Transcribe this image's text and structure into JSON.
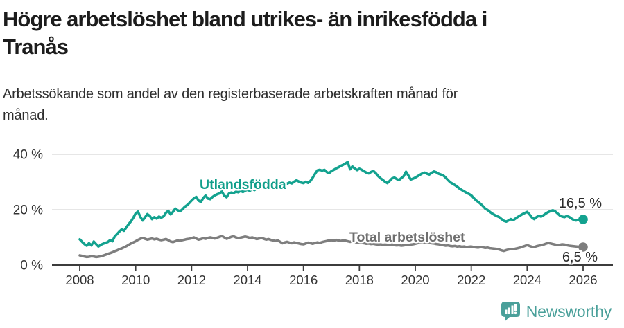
{
  "header": {
    "title_line1": "Högre arbetslöshet bland utrikes- än inrikesfödda i",
    "title_line2": "Tranås",
    "subtitle_line1": "Arbetssökande som andel av den registerbaserade arbetskraften månad för",
    "subtitle_line2": "månad."
  },
  "footer": {
    "brand": "Newsworthy",
    "brand_color": "#4aa09a"
  },
  "chart_data": {
    "type": "line",
    "title": "Högre arbetslöshet bland utrikes- än inrikesfödda i Tranås",
    "subtitle": "Arbetssökande som andel av den registerbaserade arbetskraften månad för månad.",
    "x_start_year": 2008,
    "x_step_months": 1,
    "x_ticks": [
      "2008",
      "2010",
      "2012",
      "2014",
      "2016",
      "2018",
      "2020",
      "2022",
      "2024",
      "2026"
    ],
    "y_ticks": [
      {
        "value": 0,
        "label": "0 %"
      },
      {
        "value": 20,
        "label": "20 %"
      },
      {
        "value": 40,
        "label": "40 %"
      }
    ],
    "ylim": [
      0,
      44
    ],
    "grid": "horizontal",
    "legend_position": "inline-labels",
    "series": [
      {
        "name": "Utlandsfödda",
        "color": "#13a28f",
        "label_color": "#0f9e8a",
        "end_label": "16,5 %",
        "values": [
          9.3,
          8.4,
          7.6,
          7.0,
          7.9,
          7.1,
          8.5,
          7.6,
          6.7,
          7.3,
          7.7,
          8.0,
          8.3,
          9.0,
          8.6,
          10.3,
          11.2,
          12.1,
          12.9,
          12.4,
          13.6,
          14.8,
          15.8,
          17.1,
          18.7,
          19.3,
          17.4,
          16.1,
          17.2,
          18.4,
          17.8,
          16.6,
          17.3,
          16.8,
          17.5,
          17.1,
          17.6,
          18.9,
          19.6,
          18.3,
          19.2,
          20.4,
          19.8,
          19.4,
          20.1,
          21.0,
          21.6,
          22.4,
          23.3,
          24.1,
          24.6,
          23.3,
          22.8,
          24.2,
          25.1,
          24.0,
          23.8,
          24.6,
          25.2,
          25.6,
          25.9,
          26.6,
          25.1,
          24.5,
          25.8,
          26.2,
          26.0,
          26.5,
          26.3,
          26.8,
          26.4,
          26.9,
          27.2,
          26.8,
          27.5,
          27.1,
          27.8,
          27.4,
          28.0,
          27.6,
          28.2,
          27.9,
          28.4,
          28.1,
          28.6,
          28.9,
          28.5,
          29.1,
          28.8,
          29.4,
          29.8,
          29.5,
          30.1,
          30.6,
          30.2,
          29.8,
          29.6,
          30.1,
          29.7,
          30.4,
          31.6,
          33.0,
          34.2,
          34.4,
          34.1,
          34.4,
          33.6,
          33.2,
          33.9,
          34.4,
          34.9,
          35.3,
          35.8,
          36.2,
          36.7,
          37.2,
          34.6,
          35.6,
          34.9,
          34.3,
          34.8,
          34.4,
          33.9,
          33.4,
          33.1,
          33.6,
          34.0,
          33.2,
          32.2,
          31.4,
          30.8,
          30.1,
          29.6,
          30.4,
          31.3,
          31.6,
          31.1,
          30.7,
          31.4,
          32.1,
          33.7,
          32.4,
          30.9,
          31.2,
          31.6,
          32.1,
          32.6,
          33.1,
          33.4,
          33.0,
          32.7,
          33.3,
          33.8,
          33.5,
          33.0,
          32.7,
          32.4,
          31.6,
          30.7,
          29.9,
          29.4,
          28.9,
          28.3,
          27.6,
          27.1,
          26.6,
          26.1,
          25.7,
          25.2,
          24.3,
          23.4,
          22.8,
          22.1,
          21.3,
          20.4,
          19.9,
          19.2,
          18.6,
          18.1,
          17.7,
          17.3,
          16.6,
          16.0,
          15.7,
          16.1,
          16.6,
          16.2,
          16.8,
          17.4,
          17.9,
          18.4,
          18.8,
          19.2,
          18.3,
          17.2,
          16.6,
          17.3,
          17.8,
          17.5,
          18.0,
          18.6,
          19.1,
          19.5,
          19.8,
          19.4,
          18.7,
          17.9,
          17.5,
          17.3,
          17.7,
          17.4,
          16.8,
          16.3,
          16.1,
          16.4,
          16.2,
          16.5
        ]
      },
      {
        "name": "Total arbetslöshet",
        "color": "#7e7e7e",
        "label_color": "#6f6f6f",
        "end_label": "6,5 %",
        "values": [
          3.5,
          3.3,
          3.1,
          2.9,
          3.0,
          3.2,
          3.1,
          2.9,
          3.0,
          3.2,
          3.4,
          3.7,
          4.0,
          4.3,
          4.6,
          5.0,
          5.3,
          5.7,
          6.0,
          6.4,
          6.8,
          7.3,
          7.8,
          8.2,
          8.6,
          9.1,
          9.5,
          9.8,
          9.5,
          9.2,
          9.4,
          9.6,
          9.3,
          9.5,
          9.2,
          9.0,
          9.2,
          9.4,
          9.0,
          8.5,
          8.3,
          8.6,
          8.9,
          8.7,
          9.0,
          9.2,
          9.4,
          9.5,
          9.7,
          10.0,
          9.6,
          9.2,
          9.4,
          9.7,
          9.5,
          9.8,
          10.0,
          9.8,
          9.6,
          9.9,
          10.2,
          10.5,
          10.0,
          9.5,
          9.8,
          10.2,
          10.4,
          10.0,
          9.7,
          9.9,
          10.1,
          10.3,
          10.1,
          9.8,
          10.0,
          9.7,
          9.4,
          9.6,
          9.8,
          9.5,
          9.2,
          9.4,
          9.1,
          8.9,
          8.7,
          8.9,
          8.4,
          7.9,
          8.2,
          8.4,
          8.1,
          7.9,
          8.2,
          8.0,
          7.8,
          7.6,
          7.5,
          7.8,
          8.1,
          7.9,
          7.7,
          8.0,
          8.2,
          8.0,
          8.3,
          8.5,
          8.7,
          8.9,
          9.0,
          8.8,
          9.1,
          8.9,
          8.7,
          8.9,
          8.8,
          8.6,
          8.4,
          8.5,
          8.3,
          8.1,
          8.2,
          8.0,
          7.9,
          7.7,
          7.8,
          7.6,
          7.7,
          7.5,
          7.4,
          7.5,
          7.3,
          7.4,
          7.3,
          7.2,
          7.4,
          7.2,
          7.1,
          7.2,
          7.0,
          7.1,
          7.3,
          7.2,
          7.4,
          7.5,
          7.7,
          7.9,
          8.1,
          8.3,
          8.2,
          8.0,
          8.1,
          7.9,
          7.8,
          7.6,
          7.5,
          7.3,
          7.2,
          7.0,
          7.1,
          6.9,
          6.8,
          6.9,
          6.7,
          6.8,
          6.6,
          6.7,
          6.5,
          6.6,
          6.7,
          6.5,
          6.4,
          6.3,
          6.5,
          6.4,
          6.2,
          6.3,
          6.1,
          6.0,
          5.9,
          5.8,
          5.6,
          5.3,
          5.1,
          5.4,
          5.6,
          5.8,
          5.7,
          5.9,
          6.1,
          6.3,
          6.6,
          6.9,
          7.2,
          6.9,
          6.6,
          6.5,
          6.8,
          7.0,
          7.2,
          7.4,
          7.7,
          8.0,
          7.8,
          7.6,
          7.4,
          7.2,
          7.3,
          7.5,
          7.4,
          7.2,
          7.0,
          6.9,
          6.8,
          6.7,
          6.6,
          6.5,
          6.5
        ]
      }
    ]
  }
}
